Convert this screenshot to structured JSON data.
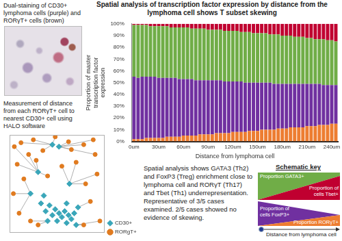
{
  "chart_data": [
    {
      "type": "bar",
      "title": "Spatial analysis of transcription factor expression by distance from the lymphoma cell shows T subset skewing",
      "x_label": "Distance from lymphoma cell",
      "y_label": "Proportion of master transcription factor expression",
      "stacked": true,
      "grid": false,
      "categories": [
        "0um",
        null,
        null,
        null,
        null,
        null,
        "30um",
        null,
        null,
        null,
        null,
        null,
        "60um",
        null,
        null,
        null,
        null,
        null,
        "90um",
        null,
        null,
        null,
        null,
        null,
        "120um",
        null,
        null,
        null,
        null,
        null,
        "150um",
        null,
        null,
        null,
        null,
        null,
        "180um",
        null,
        null,
        null,
        null,
        null,
        "210um",
        null,
        null,
        null,
        null,
        null,
        "240um",
        null
      ],
      "series": [
        {
          "name": "Proportion RORγT+",
          "color": "#ed7d31",
          "values": [
            2,
            2,
            2,
            3,
            3,
            3,
            3,
            3,
            4,
            4,
            4,
            4,
            5,
            5,
            5,
            5,
            6,
            6,
            6,
            6,
            7,
            7,
            7,
            7,
            8,
            8,
            8,
            8,
            9,
            9,
            9,
            10,
            10,
            10,
            10,
            11,
            11,
            11,
            12,
            12,
            12,
            12,
            13,
            13,
            13,
            14,
            14,
            14,
            15,
            15
          ]
        },
        {
          "name": "Proportion of cells FoxP3+",
          "color": "#7030a0",
          "values": [
            53,
            52,
            53,
            52,
            52,
            52,
            51,
            51,
            50,
            50,
            50,
            49,
            48,
            48,
            48,
            47,
            46,
            46,
            46,
            46,
            45,
            45,
            44,
            44,
            43,
            43,
            43,
            42,
            41,
            41,
            41,
            40,
            40,
            40,
            39,
            38,
            38,
            38,
            37,
            37,
            37,
            37,
            36,
            36,
            36,
            35,
            34,
            34,
            33,
            33
          ]
        },
        {
          "name": "Proportion GATA3+",
          "color": "#70ad47",
          "values": [
            44,
            45,
            44,
            44,
            43,
            43,
            44,
            44,
            44,
            43,
            43,
            44,
            44,
            44,
            43,
            44,
            44,
            44,
            43,
            43,
            43,
            43,
            43,
            43,
            43,
            43,
            42,
            43,
            43,
            42,
            42,
            42,
            42,
            41,
            42,
            42,
            41,
            41,
            41,
            40,
            40,
            40,
            39,
            39,
            38,
            38,
            39,
            38,
            38,
            37
          ]
        },
        {
          "name": "Proportion of cells Tbet+",
          "color": "#c00030",
          "values": [
            1,
            1,
            1,
            1,
            2,
            2,
            2,
            2,
            2,
            3,
            3,
            3,
            3,
            3,
            4,
            4,
            4,
            4,
            5,
            5,
            5,
            5,
            6,
            6,
            6,
            6,
            7,
            7,
            7,
            8,
            8,
            8,
            8,
            9,
            9,
            9,
            10,
            10,
            10,
            11,
            11,
            11,
            12,
            12,
            13,
            13,
            13,
            14,
            14,
            15
          ]
        }
      ],
      "ylim": [
        0,
        100
      ],
      "yticks": [
        {
          "value": 0,
          "label": "0%"
        },
        {
          "value": 10,
          "label": "10%"
        },
        {
          "value": 20,
          "label": "20%"
        },
        {
          "value": 30,
          "label": "30%"
        },
        {
          "value": 40,
          "label": "40%"
        },
        {
          "value": 50,
          "label": "50%"
        },
        {
          "value": 60,
          "label": "60%"
        },
        {
          "value": 70,
          "label": "70%"
        },
        {
          "value": 80,
          "label": "80%"
        },
        {
          "value": 90,
          "label": "90%"
        },
        {
          "value": 100,
          "label": "100%"
        }
      ]
    },
    {
      "type": "scatter",
      "tick_labels": false,
      "grid": false,
      "legend": "bottom right",
      "xlim": [
        0,
        100
      ],
      "ylim": [
        0,
        100
      ],
      "series": [
        {
          "name": "CD30+",
          "color": "#3aa6b9",
          "marker": "diamond",
          "x": [
            22,
            30,
            33,
            38,
            42,
            45,
            48,
            50,
            52,
            55,
            58,
            60,
            62,
            65,
            68,
            70,
            72,
            45,
            52,
            60,
            40,
            36,
            63
          ],
          "values": [
            40,
            62,
            30,
            22,
            28,
            18,
            24,
            12,
            20,
            16,
            22,
            10,
            18,
            14,
            20,
            8,
            26,
            90,
            88,
            30,
            12,
            38,
            50
          ]
        },
        {
          "name": "RORgT+",
          "color": "#e07b20",
          "marker": "circle",
          "x": [
            5,
            12,
            25,
            35,
            48,
            62,
            78,
            90,
            70,
            55,
            28,
            8,
            15,
            4,
            10,
            22,
            30,
            80,
            92,
            85,
            95,
            78,
            40,
            20,
            65,
            88
          ],
          "values": [
            88,
            92,
            95,
            84,
            98,
            93,
            90,
            80,
            72,
            68,
            74,
            70,
            55,
            40,
            20,
            12,
            8,
            50,
            60,
            32,
            12,
            8,
            58,
            80,
            85,
            95
          ]
        }
      ]
    }
  ],
  "staining_caption": "Dual-staining of CD30+ lymphoma cells (purple) and RORγT+ cells (brown)",
  "measurement_caption": "Measurement of distance from each RORγT+ cell to nearest CD30+ cell using HALO software",
  "summary": "Spatial analysis shows GATA3 (Th2) and FoxP3 (Treg) enrichment close to lymphoma cell and RORγT (Th17) and Tbet (Th1) underrepresentation. Representative of 3/5 cases examined. 2/5 cases showed no evidence of skewing.",
  "schematic_key": {
    "title": "Schematic key",
    "axis_label": "Distance from lymphoma cell"
  }
}
